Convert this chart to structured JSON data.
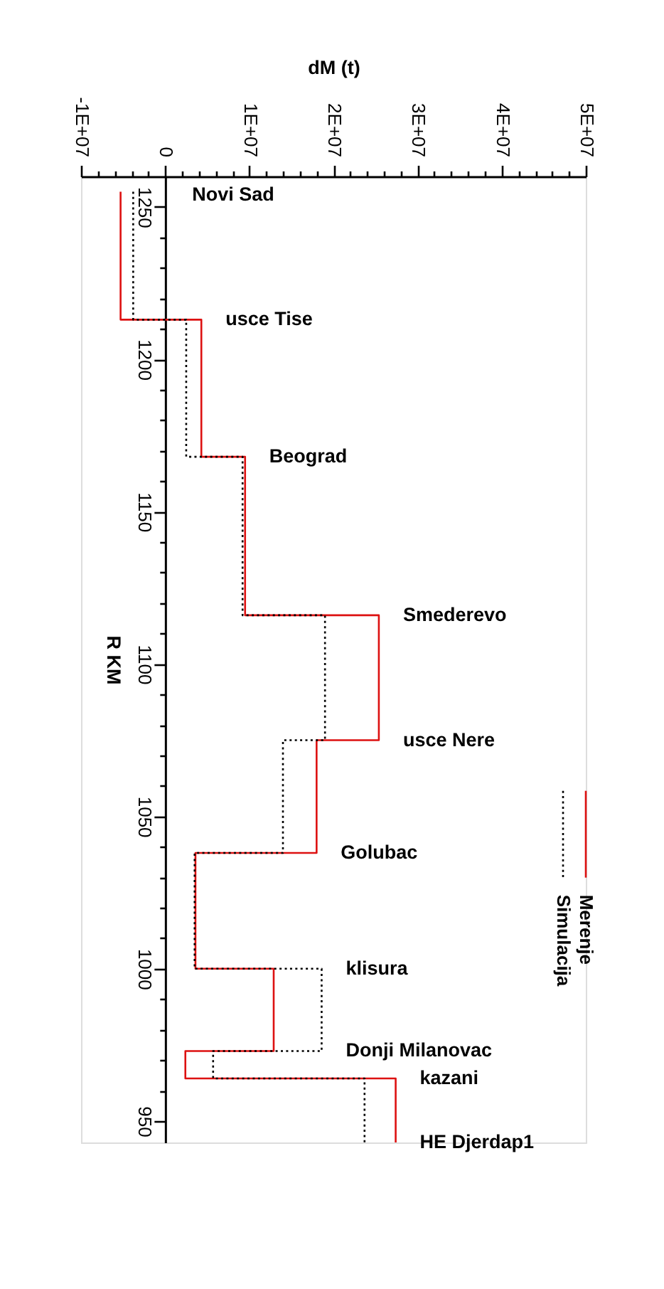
{
  "chart_data": {
    "type": "line",
    "xlabel": "dM (t)",
    "ylabel": "R KM",
    "xlim": [
      -10000000,
      50000000
    ],
    "xticks": [
      {
        "value": -10000000,
        "label": "-1E+07"
      },
      {
        "value": -8000000,
        "label": null
      },
      {
        "value": -6000000,
        "label": null
      },
      {
        "value": -4000000,
        "label": null
      },
      {
        "value": -2000000,
        "label": null
      },
      {
        "value": 0,
        "label": "0"
      },
      {
        "value": 2000000,
        "label": null
      },
      {
        "value": 4000000,
        "label": null
      },
      {
        "value": 6000000,
        "label": null
      },
      {
        "value": 8000000,
        "label": null
      },
      {
        "value": 10000000,
        "label": "1E+07"
      },
      {
        "value": 12000000,
        "label": null
      },
      {
        "value": 14000000,
        "label": null
      },
      {
        "value": 16000000,
        "label": null
      },
      {
        "value": 18000000,
        "label": null
      },
      {
        "value": 20000000,
        "label": "2E+07"
      },
      {
        "value": 22000000,
        "label": null
      },
      {
        "value": 24000000,
        "label": null
      },
      {
        "value": 26000000,
        "label": null
      },
      {
        "value": 28000000,
        "label": null
      },
      {
        "value": 30000000,
        "label": "3E+07"
      },
      {
        "value": 32000000,
        "label": null
      },
      {
        "value": 34000000,
        "label": null
      },
      {
        "value": 36000000,
        "label": null
      },
      {
        "value": 38000000,
        "label": null
      },
      {
        "value": 40000000,
        "label": "4E+07"
      },
      {
        "value": 42000000,
        "label": null
      },
      {
        "value": 44000000,
        "label": null
      },
      {
        "value": 46000000,
        "label": null
      },
      {
        "value": 48000000,
        "label": null
      },
      {
        "value": 50000000,
        "label": "5E+07"
      }
    ],
    "ylim": [
      943,
      1260
    ],
    "yticks": [
      950,
      {
        "value": 960,
        "label": null
      },
      {
        "value": 970,
        "label": null
      },
      {
        "value": 980,
        "label": null
      },
      {
        "value": 990,
        "label": null
      },
      1000,
      {
        "value": 1010,
        "label": null
      },
      {
        "value": 1020,
        "label": null
      },
      {
        "value": 1030,
        "label": null
      },
      {
        "value": 1040,
        "label": null
      },
      1050,
      {
        "value": 1060,
        "label": null
      },
      {
        "value": 1070,
        "label": null
      },
      {
        "value": 1080,
        "label": null
      },
      {
        "value": 1090,
        "label": null
      },
      1100,
      {
        "value": 1110,
        "label": null
      },
      {
        "value": 1120,
        "label": null
      },
      {
        "value": 1130,
        "label": null
      },
      {
        "value": 1140,
        "label": null
      },
      1150,
      {
        "value": 1160,
        "label": null
      },
      {
        "value": 1170,
        "label": null
      },
      {
        "value": 1180,
        "label": null
      },
      {
        "value": 1190,
        "label": null
      },
      1200,
      {
        "value": 1210,
        "label": null
      },
      {
        "value": 1220,
        "label": null
      },
      {
        "value": 1230,
        "label": null
      },
      {
        "value": 1240,
        "label": null
      },
      1250
    ],
    "series": [
      {
        "name": "Merenje",
        "color": "#dd1111",
        "line_style": "solid",
        "x": [
          -5300000,
          -5300000,
          4300000,
          4300000,
          9500000,
          9500000,
          25400000,
          25400000,
          18000000,
          18000000,
          3600000,
          3600000,
          12900000,
          12900000,
          2400000,
          2400000,
          27400000,
          27400000
        ],
        "values": [
          1255,
          1213,
          1213,
          1168,
          1168,
          1116,
          1116,
          1075,
          1075,
          1038,
          1038,
          1000,
          1000,
          973,
          973,
          964,
          964,
          943
        ]
      },
      {
        "name": "Simulacija",
        "color": "#000000",
        "line_style": "dotted",
        "x": [
          -3800000,
          -3800000,
          2500000,
          2500000,
          9200000,
          9200000,
          19000000,
          19000000,
          14000000,
          14000000,
          3500000,
          3500000,
          18600000,
          18600000,
          5700000,
          5700000,
          23700000,
          23700000
        ],
        "values": [
          1255,
          1213,
          1213,
          1168,
          1168,
          1116,
          1116,
          1075,
          1075,
          1038,
          1038,
          1000,
          1000,
          973,
          973,
          964,
          964,
          943
        ]
      }
    ],
    "annotations": [
      "Novi Sad",
      {
        "text": "usce Tise",
        "x": 4300000,
        "y": 1213
      },
      {
        "text": "Beograd",
        "x": 9500000,
        "y": 1168
      },
      {
        "text": "Smederevo",
        "x": 25400000,
        "y": 1116
      },
      {
        "text": "usce Nere",
        "x": 25400000,
        "y": 1075
      },
      {
        "text": "Golubac",
        "x": 18000000,
        "y": 1038
      },
      {
        "text": "klisura",
        "x": 18600000,
        "y": 1000
      },
      {
        "text": "Donji Milanovac",
        "x": 18600000,
        "y": 973
      },
      {
        "text": "kazani",
        "x": 27400000,
        "y": 964
      },
      {
        "text": "HE Djerdap1",
        "x": 27400000,
        "y": 943
      }
    ],
    "legend": "right",
    "grid": false,
    "marker": "none"
  }
}
